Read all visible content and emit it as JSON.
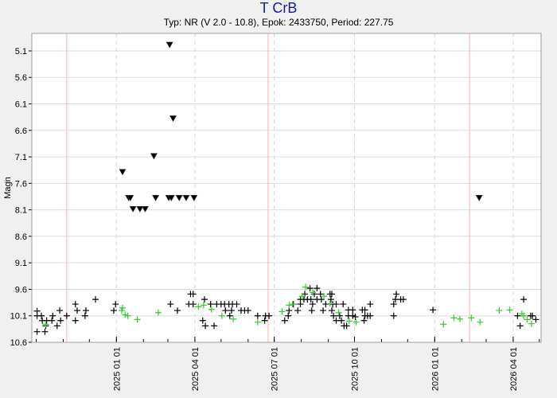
{
  "chart_data": {
    "type": "scatter",
    "title": "T CrB",
    "subtitle": "Typ: NR (V 2.0 - 10.8), Epok: 2433750, Period: 227.75",
    "ylabel": "Magn",
    "xlabel": "",
    "xlim": [
      "2024-09-26",
      "2026-05-03"
    ],
    "ylim": [
      10.6,
      4.77
    ],
    "y_inverted": true,
    "yticks": [
      5.1,
      5.6,
      6.1,
      6.6,
      7.1,
      7.6,
      8.1,
      8.6,
      9.1,
      9.6,
      10.1,
      10.6
    ],
    "xticks": [
      {
        "date": "2025-01-01",
        "label": "2025 01 01"
      },
      {
        "date": "2025-04-01",
        "label": "2025 04 01"
      },
      {
        "date": "2025-07-01",
        "label": "2025 07 01"
      },
      {
        "date": "2025-10-01",
        "label": "2025 10 01"
      },
      {
        "date": "2026-01-01",
        "label": "2026 01 01"
      },
      {
        "date": "2026-04-01",
        "label": "2026 04 01"
      }
    ],
    "grid": true,
    "period_marker_dates": [
      "2024-11-05",
      "2025-06-24",
      "2026-02-10"
    ],
    "colors": {
      "visual": "#000000",
      "green": "#33cc33",
      "limit": "#606060",
      "period_line": "#ffb0b0",
      "title": "#1a1aa0"
    },
    "series": [
      {
        "kind": "visual",
        "marker": "plus",
        "points": [
          [
            "2024-10-02",
            10.01
          ],
          [
            "2024-10-02",
            10.1
          ],
          [
            "2024-10-07",
            10.1
          ],
          [
            "2024-10-08",
            10.19
          ],
          [
            "2024-10-02",
            10.4
          ],
          [
            "2024-10-11",
            10.4
          ],
          [
            "2024-10-12",
            10.29
          ],
          [
            "2024-10-13",
            10.19
          ],
          [
            "2024-10-19",
            10.19
          ],
          [
            "2024-10-20",
            10.1
          ],
          [
            "2024-10-25",
            10.29
          ],
          [
            "2024-10-28",
            10.0
          ],
          [
            "2024-10-29",
            10.19
          ],
          [
            "2024-11-05",
            10.1
          ],
          [
            "2024-11-15",
            9.88
          ],
          [
            "2024-11-17",
            10.0
          ],
          [
            "2024-11-15",
            10.19
          ],
          [
            "2024-11-27",
            10.0
          ],
          [
            "2024-11-26",
            10.1
          ],
          [
            "2024-12-08",
            9.79
          ],
          [
            "2024-12-29",
            10.0
          ],
          [
            "2024-12-31",
            9.88
          ],
          [
            "2025-03-04",
            9.88
          ],
          [
            "2025-03-12",
            10.0
          ],
          [
            "2025-03-25",
            9.88
          ],
          [
            "2025-03-27",
            9.69
          ],
          [
            "2025-03-30",
            9.69
          ],
          [
            "2025-03-30",
            9.88
          ],
          [
            "2025-04-12",
            9.79
          ],
          [
            "2025-04-19",
            9.88
          ],
          [
            "2025-04-10",
            10.19
          ],
          [
            "2025-04-13",
            10.29
          ],
          [
            "2025-04-23",
            10.29
          ],
          [
            "2025-04-26",
            9.88
          ],
          [
            "2025-05-01",
            9.88
          ],
          [
            "2025-05-05",
            9.88
          ],
          [
            "2025-05-10",
            9.88
          ],
          [
            "2025-05-14",
            9.88
          ],
          [
            "2025-05-19",
            9.88
          ],
          [
            "2025-05-06",
            10.0
          ],
          [
            "2025-05-11",
            10.1
          ],
          [
            "2025-05-13",
            10.0
          ],
          [
            "2025-05-24",
            10.0
          ],
          [
            "2025-05-28",
            10.0
          ],
          [
            "2025-06-01",
            10.0
          ],
          [
            "2025-06-12",
            10.1
          ],
          [
            "2025-06-20",
            10.19
          ],
          [
            "2025-06-21",
            10.1
          ],
          [
            "2025-06-25",
            10.1
          ],
          [
            "2025-07-13",
            10.19
          ],
          [
            "2025-07-17",
            10.1
          ],
          [
            "2025-07-18",
            10.0
          ],
          [
            "2025-07-23",
            9.88
          ],
          [
            "2025-07-28",
            10.0
          ],
          [
            "2025-07-31",
            9.79
          ],
          [
            "2025-07-31",
            9.88
          ],
          [
            "2025-08-04",
            9.79
          ],
          [
            "2025-08-05",
            9.69
          ],
          [
            "2025-08-08",
            9.79
          ],
          [
            "2025-08-11",
            9.58
          ],
          [
            "2025-08-12",
            9.79
          ],
          [
            "2025-08-13",
            10.0
          ],
          [
            "2025-08-14",
            9.88
          ],
          [
            "2025-08-16",
            9.69
          ],
          [
            "2025-08-19",
            9.58
          ],
          [
            "2025-08-19",
            9.79
          ],
          [
            "2025-08-23",
            9.69
          ],
          [
            "2025-08-24",
            9.79
          ],
          [
            "2025-08-26",
            10.0
          ],
          [
            "2025-08-29",
            9.88
          ],
          [
            "2025-09-03",
            9.69
          ],
          [
            "2025-09-04",
            9.79
          ],
          [
            "2025-09-05",
            9.69
          ],
          [
            "2025-09-06",
            9.88
          ],
          [
            "2025-09-05",
            10.0
          ],
          [
            "2025-09-10",
            9.88
          ],
          [
            "2025-09-07",
            10.1
          ],
          [
            "2025-09-10",
            10.19
          ],
          [
            "2025-09-14",
            10.1
          ],
          [
            "2025-09-16",
            10.19
          ],
          [
            "2025-09-18",
            9.88
          ],
          [
            "2025-09-19",
            10.29
          ],
          [
            "2025-09-22",
            10.29
          ],
          [
            "2025-09-24",
            9.99
          ],
          [
            "2025-09-24",
            10.1
          ],
          [
            "2025-09-29",
            9.99
          ],
          [
            "2025-09-29",
            10.1
          ],
          [
            "2025-10-02",
            10.12
          ],
          [
            "2025-10-10",
            9.99
          ],
          [
            "2025-10-13",
            9.99
          ],
          [
            "2025-10-13",
            10.1
          ],
          [
            "2025-10-12",
            10.19
          ],
          [
            "2025-10-16",
            10.1
          ],
          [
            "2025-10-19",
            10.1
          ],
          [
            "2025-10-19",
            9.88
          ],
          [
            "2025-11-18",
            9.69
          ],
          [
            "2025-11-17",
            9.79
          ],
          [
            "2025-11-23",
            9.79
          ],
          [
            "2025-11-26",
            9.79
          ],
          [
            "2025-11-15",
            9.88
          ],
          [
            "2025-11-15",
            10.1
          ],
          [
            "2025-12-30",
            9.99
          ],
          [
            "2026-04-13",
            9.79
          ],
          [
            "2026-04-06",
            10.1
          ],
          [
            "2026-04-09",
            10.29
          ],
          [
            "2026-04-21",
            10.1
          ],
          [
            "2026-04-23",
            10.1
          ],
          [
            "2026-04-27",
            10.17
          ]
        ]
      },
      {
        "kind": "green",
        "marker": "plus",
        "points": [
          [
            "2024-10-12",
            10.26
          ],
          [
            "2025-01-07",
            10.0
          ],
          [
            "2025-01-08",
            9.95
          ],
          [
            "2025-01-11",
            10.08
          ],
          [
            "2025-01-14",
            10.1
          ],
          [
            "2025-01-25",
            10.17
          ],
          [
            "2025-02-18",
            10.04
          ],
          [
            "2025-04-05",
            9.93
          ],
          [
            "2025-04-11",
            9.9
          ],
          [
            "2025-04-20",
            9.98
          ],
          [
            "2025-05-02",
            10.1
          ],
          [
            "2025-05-15",
            10.16
          ],
          [
            "2025-06-12",
            10.22
          ],
          [
            "2025-07-10",
            10.02
          ],
          [
            "2025-07-18",
            9.9
          ],
          [
            "2025-07-22",
            9.88
          ],
          [
            "2025-08-02",
            9.73
          ],
          [
            "2025-08-06",
            9.56
          ],
          [
            "2025-08-14",
            9.66
          ],
          [
            "2025-08-27",
            9.73
          ],
          [
            "2025-09-03",
            9.87
          ],
          [
            "2025-09-13",
            10.04
          ],
          [
            "2025-09-25",
            10.2
          ],
          [
            "2025-10-03",
            10.22
          ],
          [
            "2026-01-11",
            10.26
          ],
          [
            "2026-01-23",
            10.14
          ],
          [
            "2026-01-30",
            10.16
          ],
          [
            "2026-02-12",
            10.14
          ],
          [
            "2026-02-22",
            10.22
          ],
          [
            "2026-03-16",
            10.0
          ],
          [
            "2026-03-28",
            9.99
          ],
          [
            "2026-04-11",
            10.06
          ],
          [
            "2026-04-13",
            10.1
          ],
          [
            "2026-04-17",
            10.17
          ],
          [
            "2026-04-22",
            10.25
          ]
        ]
      },
      {
        "kind": "fainter-than",
        "marker": "triangle-down",
        "points": [
          [
            "2025-01-08",
            7.38
          ],
          [
            "2025-01-15",
            7.87
          ],
          [
            "2025-01-17",
            7.87
          ],
          [
            "2025-01-20",
            8.08
          ],
          [
            "2025-01-28",
            8.08
          ],
          [
            "2025-02-03",
            8.08
          ],
          [
            "2025-02-13",
            7.08
          ],
          [
            "2025-02-15",
            7.87
          ],
          [
            "2025-03-02",
            7.87
          ],
          [
            "2025-03-03",
            4.98
          ],
          [
            "2025-03-05",
            7.87
          ],
          [
            "2025-03-07",
            6.37
          ],
          [
            "2025-03-14",
            7.87
          ],
          [
            "2025-03-22",
            7.87
          ],
          [
            "2025-03-31",
            7.87
          ],
          [
            "2026-02-21",
            7.87
          ]
        ]
      }
    ]
  }
}
